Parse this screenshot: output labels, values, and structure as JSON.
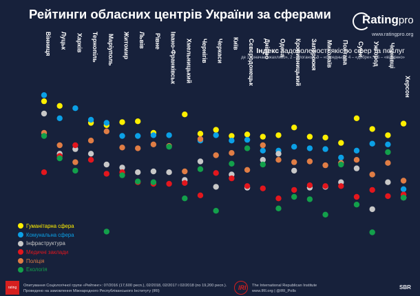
{
  "title": "Рейтинги обласних центрів України за сферами",
  "logo": {
    "word": "Rating",
    "word_suffix": "pro",
    "url": "www.ratingpro.org"
  },
  "index": {
    "title_bold": "Індекс",
    "title_rest": "задоволеності якістю сфер та послуг",
    "scale_note": "де 1 означає «жахливо», 2 – «погано», 3 – «середньо», 4 – «добре», а 5 – «відмінно»"
  },
  "chart_data": {
    "type": "scatter",
    "title": "Рейтинги обласних центрів України за сферами",
    "ylabel": "Індекс задоволеності якістю сфер та послуг",
    "ylim": [
      1.5,
      4.0
    ],
    "grid": false,
    "legend_placement": "bottom-left",
    "categories": [
      "Вінниця",
      "Луцьк",
      "Харків",
      "Тернопіль",
      "Маріуполь",
      "Житомир",
      "Львів",
      "Рівне",
      "Івано-Франківськ",
      "Хмельницький",
      "Чернігів",
      "Черкаси",
      "Київ",
      "Сєвєродонецьк",
      "Дніпро",
      "Одеса",
      "Кропивницький",
      "Запоріжжя",
      "Миколаїв",
      "Полтава",
      "Суми",
      "Ужгород",
      "Чернівці",
      "Херсон"
    ],
    "series": [
      {
        "name": "Гуманітарна сфера",
        "color": "#ffef00",
        "values": [
          3.74,
          3.68,
          null,
          3.46,
          3.43,
          3.47,
          3.48,
          3.33,
          null,
          3.57,
          3.32,
          3.37,
          3.29,
          3.31,
          3.28,
          3.3,
          3.4,
          3.28,
          3.27,
          3.2,
          3.52,
          3.38,
          3.3,
          3.45
        ]
      },
      {
        "name": "Комунальна сфера",
        "color": "#0ba0e6",
        "values": [
          3.82,
          3.52,
          3.65,
          3.5,
          3.46,
          3.29,
          3.29,
          3.3,
          3.3,
          null,
          3.23,
          3.3,
          3.23,
          3.24,
          3.1,
          3.1,
          3.15,
          3.13,
          3.12,
          3.01,
          3.1,
          3.19,
          3.18,
          2.6
        ]
      },
      {
        "name": "Інфраструктура",
        "color": "#c8c8c8",
        "values": [
          3.58,
          3.06,
          3.12,
          3.06,
          2.92,
          2.88,
          2.82,
          2.83,
          2.82,
          2.72,
          2.96,
          2.63,
          2.79,
          2.62,
          2.98,
          3.06,
          2.84,
          2.62,
          2.63,
          2.69,
          2.87,
          2.34,
          2.69,
          2.49
        ]
      },
      {
        "name": "Медичні заклади",
        "color": "#e3161d",
        "values": [
          2.82,
          3.03,
          3.17,
          2.98,
          2.8,
          2.82,
          2.69,
          2.67,
          2.67,
          2.68,
          2.52,
          2.81,
          2.74,
          2.64,
          2.61,
          2.48,
          2.59,
          2.65,
          2.64,
          2.64,
          2.5,
          2.59,
          2.51,
          2.53
        ]
      },
      {
        "name": "Поліція",
        "color": "#e07d45",
        "values": [
          3.33,
          3.17,
          2.95,
          3.23,
          3.35,
          3.14,
          3.13,
          3.18,
          3.16,
          2.83,
          3.25,
          3.04,
          3.07,
          2.85,
          3.17,
          2.98,
          2.95,
          2.96,
          2.91,
          2.94,
          2.98,
          2.79,
          2.94,
          2.71
        ]
      },
      {
        "name": "Екологія",
        "color": "#13a04b",
        "values": [
          3.29,
          3.0,
          2.84,
          null,
          2.05,
          2.78,
          2.7,
          2.69,
          3.15,
          2.48,
          2.86,
          2.32,
          2.93,
          3.13,
          2.92,
          2.35,
          2.5,
          2.47,
          2.27,
          2.92,
          2.4,
          2.04,
          3.08,
          2.49
        ]
      }
    ]
  },
  "footer": {
    "badge": "rating",
    "note_line1": "Опитування Соціологічної групи «Рейтинг»: 07/2016 (17,600 респ.), 02/2018, 02/2017 і 02/2018 (по 19,200 респ.).",
    "note_line2": "Проведено на замовлення Міжнародного Республіканського Інституту (IRI)",
    "iri": "IRI",
    "inst_line1": "The International Republican Institute",
    "inst_line2": "www.IRI.org | @IRI_Polls",
    "sbr": "SBR"
  },
  "colors": {
    "background": "#17213b",
    "accent": "#d61f1f"
  }
}
